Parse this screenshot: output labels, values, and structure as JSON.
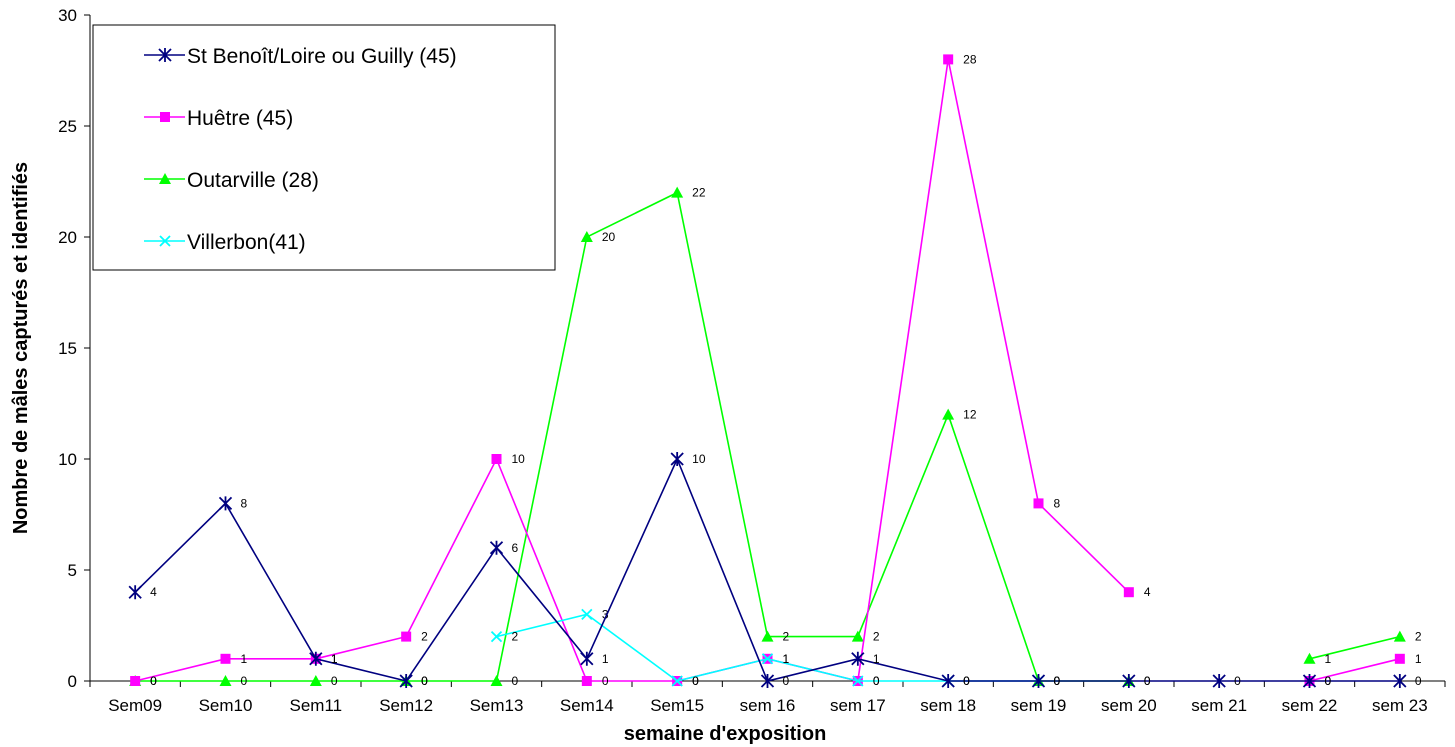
{
  "chart_data": {
    "type": "line",
    "xlabel": "semaine d'exposition",
    "ylabel": "Nombre de mâles capturés et identifiés",
    "ylim": [
      0,
      30
    ],
    "yticks": [
      0,
      5,
      10,
      15,
      20,
      25,
      30
    ],
    "categories": [
      "Sem09",
      "Sem10",
      "Sem11",
      "Sem12",
      "Sem13",
      "Sem14",
      "Sem15",
      "sem 16",
      "sem 17",
      "sem 18",
      "sem 19",
      "sem 20",
      "sem 21",
      "sem 22",
      "sem 23"
    ],
    "legend_position": "top-left",
    "grid": false,
    "series": [
      {
        "name": "St Benoît/Loire ou Guilly (45)",
        "color": "#000080",
        "marker": "asterisk",
        "values": [
          4,
          8,
          1,
          0,
          6,
          1,
          10,
          0,
          1,
          0,
          0,
          0,
          0,
          0,
          0
        ]
      },
      {
        "name": "Huêtre (45)",
        "color": "#ff00ff",
        "marker": "square",
        "values": [
          0,
          1,
          1,
          2,
          10,
          0,
          0,
          1,
          0,
          28,
          8,
          4,
          null,
          0,
          1
        ]
      },
      {
        "name": "Outarville (28)",
        "color": "#00ff00",
        "marker": "triangle",
        "values": [
          0,
          0,
          0,
          0,
          0,
          20,
          22,
          2,
          2,
          12,
          0,
          0,
          null,
          1,
          2
        ]
      },
      {
        "name": "Villerbon(41)",
        "color": "#00ffff",
        "marker": "x",
        "values": [
          null,
          null,
          null,
          null,
          2,
          3,
          0,
          1,
          0,
          0,
          0,
          null,
          null,
          null,
          null
        ]
      }
    ]
  }
}
